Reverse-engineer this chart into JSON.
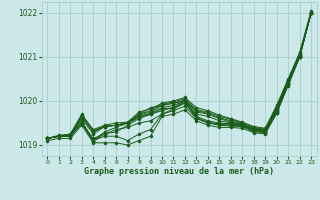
{
  "xlabel": "Graphe pression niveau de la mer (hPa)",
  "ylim": [
    1018.75,
    1022.25
  ],
  "xlim": [
    -0.5,
    23.5
  ],
  "yticks": [
    1019,
    1020,
    1021,
    1022
  ],
  "xticks": [
    0,
    1,
    2,
    3,
    4,
    5,
    6,
    7,
    8,
    9,
    10,
    11,
    12,
    13,
    14,
    15,
    16,
    17,
    18,
    19,
    20,
    21,
    22,
    23
  ],
  "bg_color": "#cce8e8",
  "grid_color": "#aacccc",
  "line_color": "#1a5c1a",
  "series": [
    [
      1019.1,
      1019.15,
      1019.15,
      1019.45,
      1019.05,
      1019.05,
      1019.05,
      1019.0,
      1019.1,
      1019.2,
      1019.65,
      1019.7,
      1019.8,
      1019.55,
      1019.45,
      1019.4,
      1019.4,
      1019.38,
      1019.28,
      1019.25,
      1019.72,
      1020.35,
      1021.0,
      1022.0
    ],
    [
      1019.15,
      1019.2,
      1019.2,
      1019.5,
      1019.1,
      1019.2,
      1019.2,
      1019.1,
      1019.25,
      1019.35,
      1019.7,
      1019.78,
      1019.88,
      1019.6,
      1019.5,
      1019.45,
      1019.43,
      1019.42,
      1019.3,
      1019.28,
      1019.73,
      1020.38,
      1021.0,
      1022.0
    ],
    [
      1019.15,
      1019.2,
      1019.2,
      1019.5,
      1019.15,
      1019.25,
      1019.35,
      1019.4,
      1019.5,
      1019.55,
      1019.7,
      1019.82,
      1019.95,
      1019.62,
      1019.52,
      1019.47,
      1019.45,
      1019.43,
      1019.32,
      1019.3,
      1019.76,
      1020.38,
      1021.0,
      1022.0
    ],
    [
      1019.15,
      1019.2,
      1019.2,
      1019.5,
      1019.1,
      1019.25,
      1019.3,
      1019.45,
      1019.6,
      1019.7,
      1019.78,
      1019.85,
      1020.0,
      1019.65,
      1019.55,
      1019.5,
      1019.48,
      1019.44,
      1019.34,
      1019.3,
      1019.78,
      1020.4,
      1021.0,
      1022.0
    ],
    [
      1019.15,
      1019.2,
      1019.2,
      1019.55,
      1019.1,
      1019.3,
      1019.4,
      1019.5,
      1019.7,
      1019.85,
      1019.9,
      1019.95,
      1020.0,
      1019.62,
      1019.5,
      1019.48,
      1019.47,
      1019.45,
      1019.35,
      1019.3,
      1019.8,
      1020.42,
      1021.02,
      1022.0
    ],
    [
      1019.15,
      1019.2,
      1019.22,
      1019.6,
      1019.25,
      1019.42,
      1019.45,
      1019.5,
      1019.62,
      1019.7,
      1019.82,
      1019.85,
      1019.97,
      1019.7,
      1019.65,
      1019.55,
      1019.5,
      1019.46,
      1019.36,
      1019.32,
      1019.8,
      1020.38,
      1021.02,
      1022.0
    ],
    [
      1019.15,
      1019.2,
      1019.22,
      1019.65,
      1019.32,
      1019.42,
      1019.45,
      1019.5,
      1019.65,
      1019.72,
      1019.85,
      1019.9,
      1020.0,
      1019.75,
      1019.7,
      1019.6,
      1019.52,
      1019.47,
      1019.36,
      1019.34,
      1019.82,
      1020.45,
      1021.05,
      1022.0
    ],
    [
      1019.15,
      1019.2,
      1019.22,
      1019.65,
      1019.3,
      1019.42,
      1019.45,
      1019.5,
      1019.68,
      1019.75,
      1019.9,
      1019.95,
      1020.02,
      1019.78,
      1019.72,
      1019.62,
      1019.55,
      1019.48,
      1019.38,
      1019.35,
      1019.85,
      1020.45,
      1021.05,
      1022.0
    ],
    [
      1019.15,
      1019.2,
      1019.22,
      1019.66,
      1019.32,
      1019.42,
      1019.45,
      1019.5,
      1019.7,
      1019.78,
      1019.92,
      1019.98,
      1020.05,
      1019.8,
      1019.75,
      1019.65,
      1019.58,
      1019.5,
      1019.4,
      1019.36,
      1019.87,
      1020.48,
      1021.08,
      1022.0
    ],
    [
      1019.15,
      1019.22,
      1019.25,
      1019.7,
      1019.35,
      1019.45,
      1019.5,
      1019.52,
      1019.75,
      1019.82,
      1019.95,
      1020.0,
      1020.08,
      1019.85,
      1019.78,
      1019.68,
      1019.6,
      1019.52,
      1019.42,
      1019.38,
      1019.9,
      1020.5,
      1021.1,
      1022.05
    ]
  ]
}
